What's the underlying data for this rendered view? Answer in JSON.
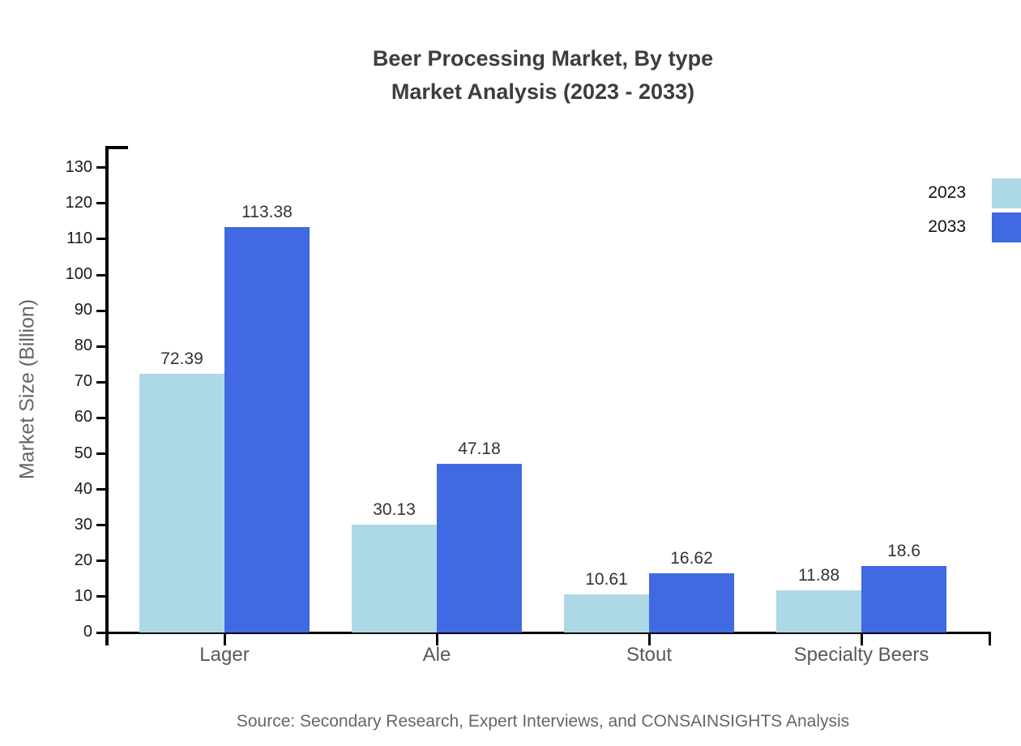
{
  "title": {
    "line1": "Beer Processing Market, By type",
    "line2": "Market Analysis (2023 - 2033)"
  },
  "y_axis_title": "Market Size (Billion)",
  "source": "Source: Secondary Research, Expert Interviews, and CONSAINSIGHTS Analysis",
  "colors": {
    "series_2023": "#ADD8E6",
    "series_2033": "#4169E1",
    "axis": "#000000",
    "title_text": "#3d3d3d",
    "category_text": "#595959",
    "muted_text": "#666666"
  },
  "chart_data": {
    "type": "bar",
    "title": "Beer Processing Market, By type — Market Analysis (2023 - 2033)",
    "categories": [
      "Lager",
      "Ale",
      "Stout",
      "Specialty Beers"
    ],
    "series": [
      {
        "name": "2023",
        "color": "#ADD8E6",
        "values": [
          72.39,
          30.13,
          10.61,
          11.88
        ]
      },
      {
        "name": "2033",
        "color": "#4169E1",
        "values": [
          113.38,
          47.18,
          16.62,
          18.6
        ]
      }
    ],
    "xlabel": "",
    "ylabel": "Market Size (Billion)",
    "ylim": [
      0,
      130
    ],
    "ytick_step": 10,
    "yticks": [
      0,
      10,
      20,
      30,
      40,
      50,
      60,
      70,
      80,
      90,
      100,
      110,
      120,
      130
    ],
    "grid": false,
    "value_labels": true,
    "legend_position": "upper right"
  }
}
